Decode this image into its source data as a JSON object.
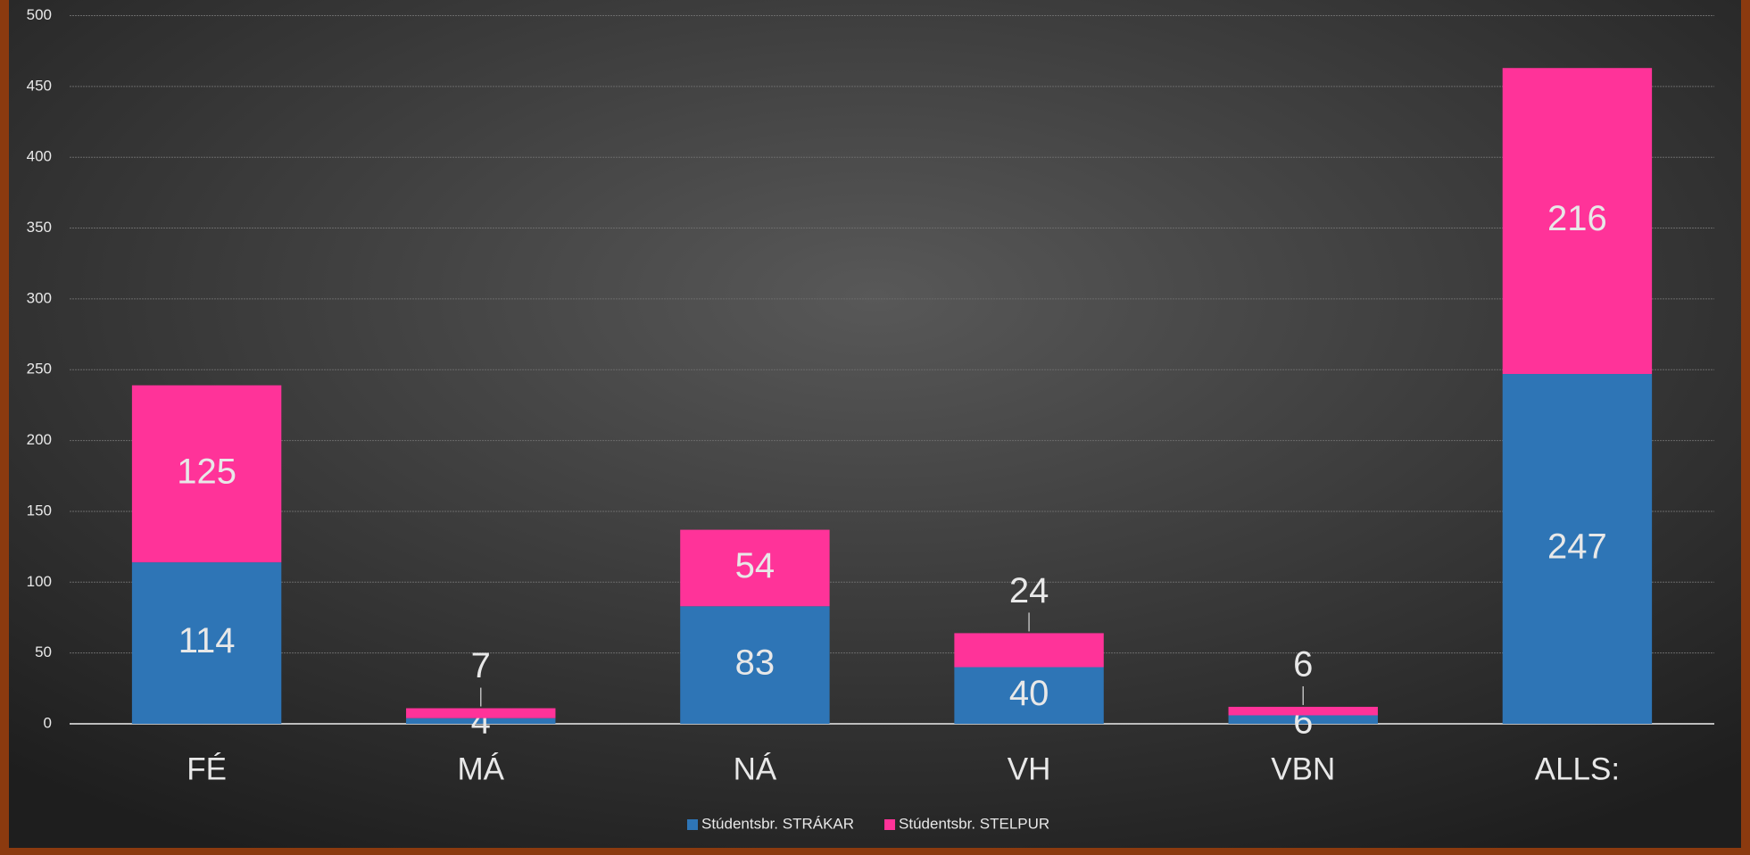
{
  "chart_data": {
    "type": "stacked_bar",
    "categories": [
      "FÉ",
      "MÁ",
      "NÁ",
      "VH",
      "VBN",
      "ALLS:"
    ],
    "series": [
      {
        "name": "Stúdentsbr. STRÁKAR",
        "color": "#2e75b6",
        "values": [
          114,
          4,
          83,
          40,
          6,
          247
        ]
      },
      {
        "name": "Stúdentsbr. STELPUR",
        "color": "#ff3399",
        "values": [
          125,
          7,
          54,
          24,
          6,
          216
        ]
      }
    ],
    "ylim": [
      0,
      500
    ],
    "yticks": [
      0,
      50,
      100,
      150,
      200,
      250,
      300,
      350,
      400,
      450,
      500
    ],
    "grid": true,
    "legend": "bottom"
  }
}
